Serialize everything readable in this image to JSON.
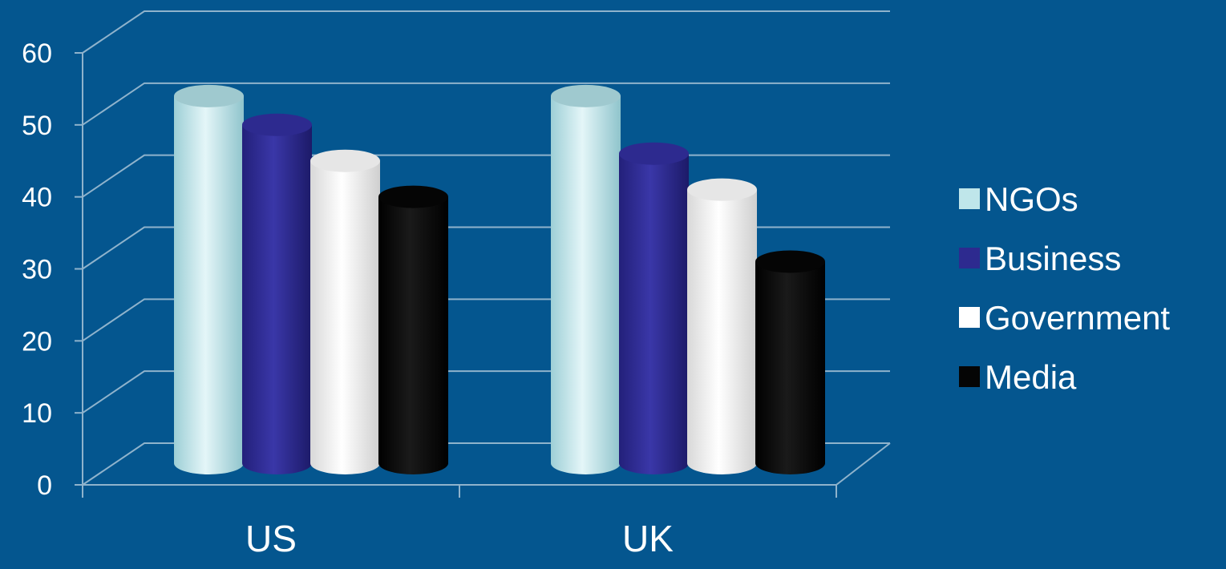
{
  "chart_data": {
    "type": "bar",
    "style": "3d-cylinder",
    "categories": [
      "US",
      "UK"
    ],
    "series": [
      {
        "name": "NGOs",
        "values": [
          51,
          51
        ]
      },
      {
        "name": "Business",
        "values": [
          47,
          43
        ]
      },
      {
        "name": "Government",
        "values": [
          42,
          38
        ]
      },
      {
        "name": "Media",
        "values": [
          37,
          28
        ]
      }
    ],
    "yticks": [
      "0",
      "10",
      "20",
      "30",
      "40",
      "50",
      "60"
    ],
    "ylim": [
      0,
      60
    ],
    "grid": true,
    "legend_position": "right",
    "colors": {
      "background": "#04568f",
      "NGOs": "#bfe6ea",
      "Business": "#2d2a8f",
      "Government": "#ffffff",
      "Media": "#050505",
      "gridline": "#8fb3cc"
    }
  }
}
